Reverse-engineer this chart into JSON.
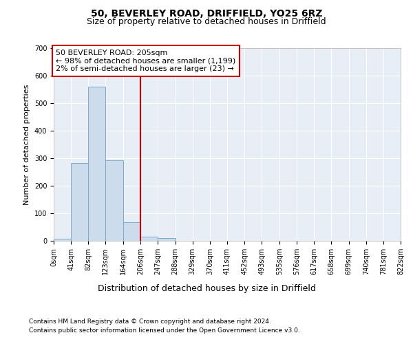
{
  "title1": "50, BEVERLEY ROAD, DRIFFIELD, YO25 6RZ",
  "title2": "Size of property relative to detached houses in Driffield",
  "xlabel": "Distribution of detached houses by size in Driffield",
  "ylabel": "Number of detached properties",
  "bin_edges": [
    0,
    41,
    82,
    123,
    164,
    206,
    247,
    288,
    329,
    370,
    411,
    452,
    493,
    535,
    576,
    617,
    658,
    699,
    740,
    781,
    822
  ],
  "bar_heights": [
    8,
    283,
    560,
    293,
    68,
    15,
    10,
    0,
    0,
    0,
    0,
    0,
    0,
    0,
    0,
    0,
    0,
    0,
    0,
    0
  ],
  "bar_color": "#cddcec",
  "bar_edge_color": "#7aaacb",
  "property_line_x": 206,
  "property_line_color": "#cc0000",
  "annotation_line1": "50 BEVERLEY ROAD: 205sqm",
  "annotation_line2": "← 98% of detached houses are smaller (1,199)",
  "annotation_line3": "2% of semi-detached houses are larger (23) →",
  "annotation_box_color": "#cc0000",
  "ylim": [
    0,
    700
  ],
  "xlim": [
    0,
    822
  ],
  "footer1": "Contains HM Land Registry data © Crown copyright and database right 2024.",
  "footer2": "Contains public sector information licensed under the Open Government Licence v3.0.",
  "background_color": "#e8eef5",
  "grid_color": "#ffffff",
  "title1_fontsize": 10,
  "title2_fontsize": 9,
  "xlabel_fontsize": 9,
  "ylabel_fontsize": 8,
  "tick_fontsize": 7,
  "footer_fontsize": 6.5,
  "annotation_fontsize": 8
}
